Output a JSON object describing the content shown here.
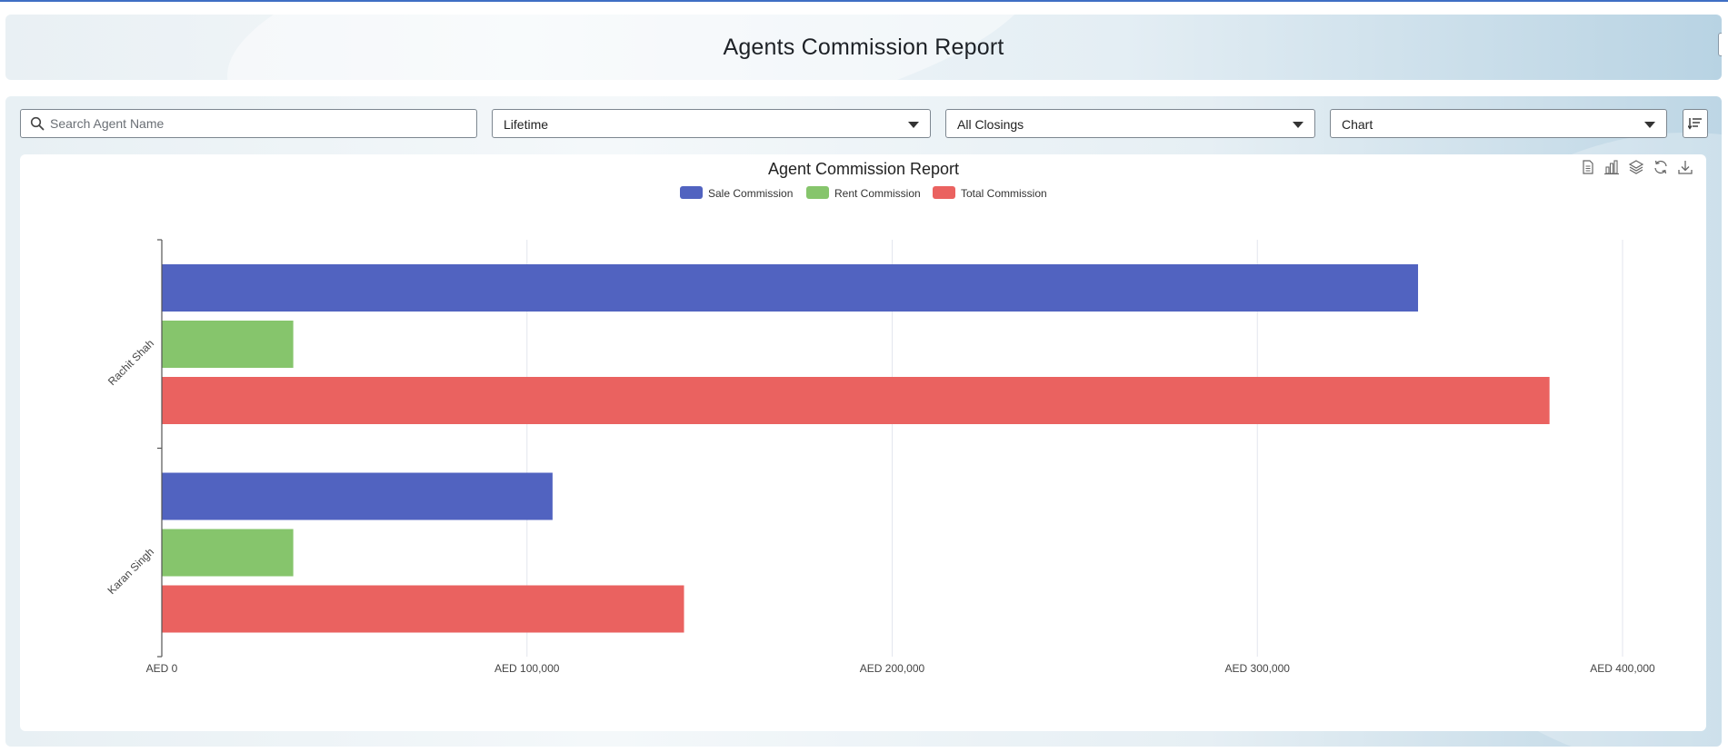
{
  "header": {
    "title": "Agents Commission Report"
  },
  "filters": {
    "search_placeholder": "Search Agent Name",
    "period": "Lifetime",
    "closings": "All Closings",
    "view": "Chart"
  },
  "toolbox": {
    "icons": [
      "data-view-icon",
      "bar-chart-icon",
      "stack-icon",
      "restore-icon",
      "download-icon"
    ]
  },
  "colors": {
    "sale": "#5163c0",
    "rent": "#86c56c",
    "total": "#ea6260",
    "accent": "#3f6fc4"
  },
  "chart_data": {
    "type": "bar",
    "orientation": "horizontal",
    "title": "Agent Commission Report",
    "categories": [
      "Rachit Shah",
      "Karan Singh"
    ],
    "series": [
      {
        "name": "Sale Commission",
        "values": [
          344000,
          107000
        ]
      },
      {
        "name": "Rent Commission",
        "values": [
          36000,
          36000
        ]
      },
      {
        "name": "Total Commission",
        "values": [
          380000,
          143000
        ]
      }
    ],
    "xlim": [
      0,
      400000
    ],
    "xticks": [
      "AED 0",
      "AED 100,000",
      "AED 200,000",
      "AED 300,000",
      "AED 400,000"
    ],
    "legend": "top-center",
    "grid": true
  }
}
